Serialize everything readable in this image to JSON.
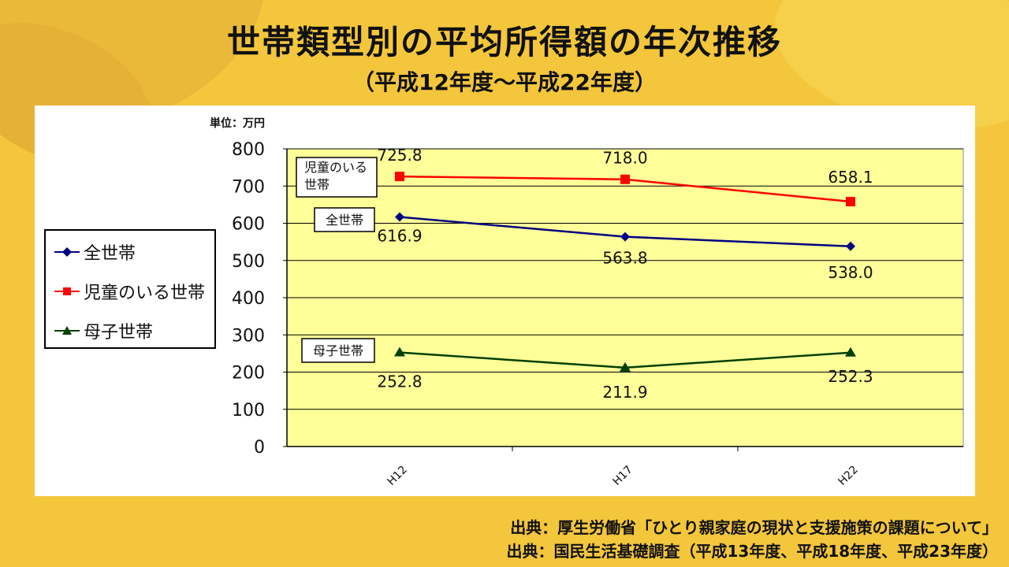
{
  "title": "世帯類型別の平均所得額の年次推移",
  "subtitle": "（平成12年度～平成22年度）",
  "unit_label": "単位：万円",
  "legend": [
    {
      "label": "全世帯"
    },
    {
      "label": "児童のいる世帯"
    },
    {
      "label": "母子世帯"
    }
  ],
  "sources": [
    "出典：厚生労働省「ひとり親家庭の現状と支援施策の課題について」",
    "出典：国民生活基礎調査（平成13年度、平成18年度、平成23年度）"
  ],
  "chart_data": {
    "type": "line",
    "title": "世帯類型別の平均所得額の年次推移",
    "ylabel": "単位：万円",
    "categories": [
      "H12",
      "H17",
      "H22"
    ],
    "ylim": [
      0,
      800
    ],
    "yticks": [
      0,
      100,
      200,
      300,
      400,
      500,
      600,
      700,
      800
    ],
    "grid": true,
    "plot_background": "#ffff99",
    "series": [
      {
        "name": "児童のいる世帯",
        "label_box": "児童のいる\n世帯",
        "values": [
          725.8,
          718.0,
          658.1
        ],
        "labels": [
          "725.8",
          "718.0",
          "658.1"
        ],
        "color": "#ff0000",
        "marker": "square"
      },
      {
        "name": "全世帯",
        "label_box": "全世帯",
        "values": [
          616.9,
          563.8,
          538.0
        ],
        "labels": [
          "616.9",
          "563.8",
          "538.0"
        ],
        "color": "#000080",
        "marker": "diamond"
      },
      {
        "name": "母子世帯",
        "label_box": "母子世帯",
        "values": [
          252.8,
          211.9,
          252.3
        ],
        "labels": [
          "252.8",
          "211.9",
          "252.3"
        ],
        "color": "#004000",
        "marker": "triangle"
      }
    ]
  }
}
